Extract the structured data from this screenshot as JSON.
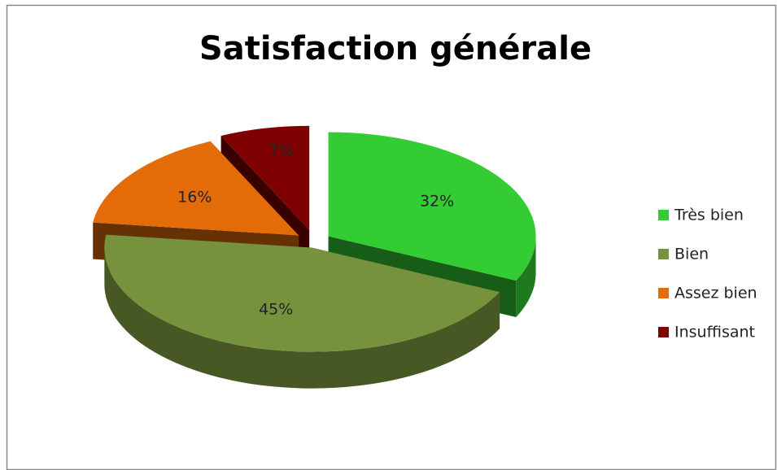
{
  "chart_data": {
    "type": "pie",
    "title": "Satisfaction générale",
    "categories": [
      "Très bien",
      "Bien",
      "Assez bien",
      "Insuffisant"
    ],
    "values": [
      32,
      45,
      16,
      7
    ],
    "value_labels": [
      "32%",
      "45%",
      "16%",
      "7%"
    ],
    "colors": [
      "#33cc33",
      "#76923c",
      "#e36c09",
      "#7f0000"
    ],
    "legend": "right"
  }
}
